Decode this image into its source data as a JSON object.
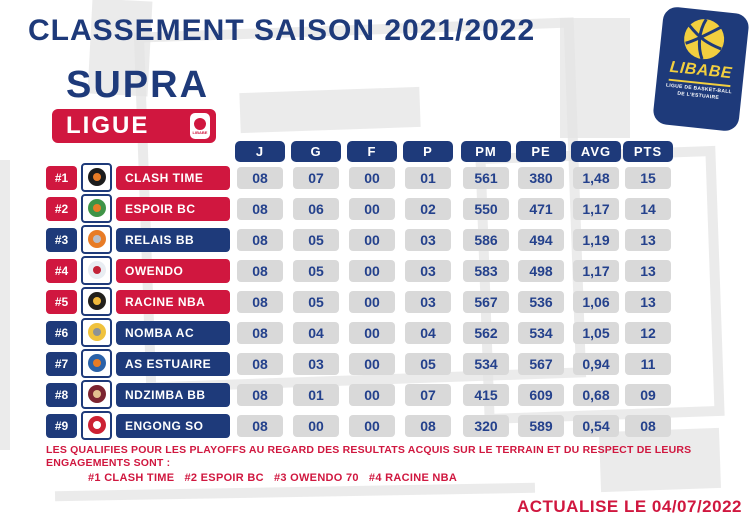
{
  "header": {
    "title": "CLASSEMENT SAISON 2021/2022",
    "league_top": "SUPRA",
    "league_bottom": "LIGUE",
    "mini_badge_label": "LIBABE",
    "org_logo": {
      "name": "LIBABE",
      "line1": "LIGUE DE BASKET-BALL",
      "line2": "DE L'ESTUAIRE"
    }
  },
  "chart_data": {
    "type": "table",
    "title": "CLASSEMENT SAISON 2021/2022",
    "columns": [
      "J",
      "G",
      "F",
      "P",
      "PM",
      "PE",
      "AVG",
      "PTS"
    ],
    "rows": [
      {
        "rank": "#1",
        "team": "CLASH TIME",
        "qualified": true,
        "values": [
          "08",
          "07",
          "00",
          "01",
          "561",
          "380",
          "1,48",
          "15"
        ],
        "logo": {
          "main": "#1c1c1c",
          "accent": "#e87c26"
        }
      },
      {
        "rank": "#2",
        "team": "ESPOIR BC",
        "qualified": true,
        "values": [
          "08",
          "06",
          "00",
          "02",
          "550",
          "471",
          "1,17",
          "14"
        ],
        "logo": {
          "main": "#3f9447",
          "accent": "#e87c26"
        }
      },
      {
        "rank": "#3",
        "team": "RELAIS BB",
        "qualified": false,
        "values": [
          "08",
          "05",
          "00",
          "03",
          "586",
          "494",
          "1,19",
          "13"
        ],
        "logo": {
          "main": "#e87c26",
          "accent": "#b9bec9"
        }
      },
      {
        "rank": "#4",
        "team": "OWENDO",
        "qualified": true,
        "values": [
          "08",
          "05",
          "00",
          "03",
          "583",
          "498",
          "1,17",
          "13"
        ],
        "logo": {
          "main": "#e9edf2",
          "accent": "#c22237"
        }
      },
      {
        "rank": "#5",
        "team": "RACINE NBA",
        "qualified": true,
        "values": [
          "08",
          "05",
          "00",
          "03",
          "567",
          "536",
          "1,06",
          "13"
        ],
        "logo": {
          "main": "#23201c",
          "accent": "#f0b93c"
        }
      },
      {
        "rank": "#6",
        "team": "NOMBA AC",
        "qualified": false,
        "values": [
          "08",
          "04",
          "00",
          "04",
          "562",
          "534",
          "1,05",
          "12"
        ],
        "logo": {
          "main": "#f0c23c",
          "accent": "#8d9296"
        }
      },
      {
        "rank": "#7",
        "team": "AS ESTUAIRE",
        "qualified": false,
        "values": [
          "08",
          "03",
          "00",
          "05",
          "534",
          "567",
          "0,94",
          "11"
        ],
        "logo": {
          "main": "#2b62a8",
          "accent": "#e87c26"
        }
      },
      {
        "rank": "#8",
        "team": "NDZIMBA BB",
        "qualified": false,
        "values": [
          "08",
          "01",
          "00",
          "07",
          "415",
          "609",
          "0,68",
          "09"
        ],
        "logo": {
          "main": "#7c2430",
          "accent": "#e3c08f"
        }
      },
      {
        "rank": "#9",
        "team": "ENGONG SO",
        "qualified": false,
        "values": [
          "08",
          "00",
          "00",
          "08",
          "320",
          "589",
          "0,54",
          "08"
        ],
        "logo": {
          "main": "#cc2133",
          "accent": "#ffffff"
        }
      }
    ]
  },
  "footer": {
    "note_line1": "LES QUALIFIES POUR LES PLAYOFFS AU REGARD DES RESULTATS ACQUIS SUR LE TERRAIN ET DU RESPECT DE LEURS",
    "note_line2": "ENGAGEMENTS SONT :",
    "qualified_list": "#1 CLASH TIME   #2 ESPOIR BC   #3 OWENDO 70   #4 RACINE NBA",
    "updated": "ACTUALISE LE 04/07/2022"
  },
  "colors": {
    "navy": "#1e3a7a",
    "red": "#d0173f",
    "cell_bg": "#d9d9d9",
    "value_text": "#24418c",
    "logo_yellow": "#f2cf3f"
  }
}
